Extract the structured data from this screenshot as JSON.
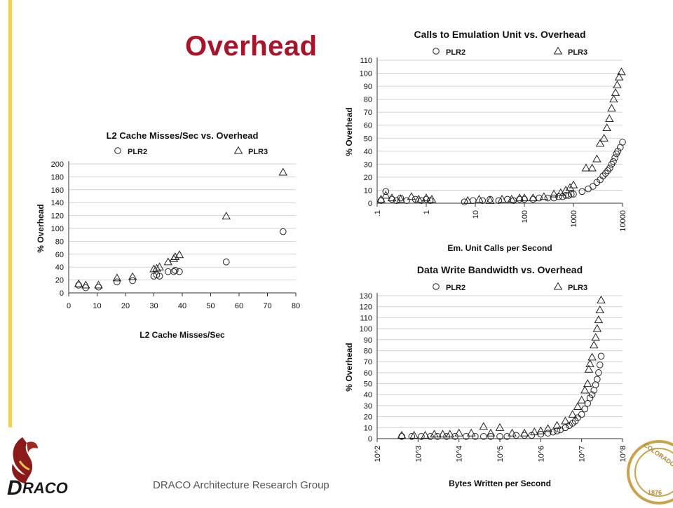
{
  "slide": {
    "title": "Overhead",
    "footer": "DRACO Architecture Research Group",
    "logo_text": "DRACO",
    "seal_text": "COLORADO",
    "colors": {
      "title": "#a8142a",
      "left_bar": "#f2cf57",
      "grid": "#d2d2d2",
      "mark": "#222222"
    }
  },
  "chart_data": [
    {
      "type": "scatter",
      "title": "L2 Cache Misses/Sec vs. Overhead",
      "xlabel": "L2 Cache Misses/Sec",
      "ylabel": "% Overhead",
      "xscale": "linear",
      "xlim": [
        0,
        80
      ],
      "ylim": [
        0,
        200
      ],
      "xticks": [
        0,
        10,
        20,
        30,
        40,
        50,
        60,
        70,
        80
      ],
      "xtick_labels": [
        "0",
        "10",
        "20",
        "30",
        "40",
        "50",
        "60",
        "70",
        "80"
      ],
      "yticks": [
        0,
        20,
        40,
        60,
        80,
        100,
        120,
        140,
        160,
        180,
        200
      ],
      "ytick_labels": [
        "0",
        "20",
        "40",
        "60",
        "80",
        "100",
        "120",
        "140",
        "160",
        "180",
        "200"
      ],
      "grid": true,
      "legend": "top",
      "series": [
        {
          "name": "PLR2",
          "marker": "circle",
          "x": [
            3.5,
            6,
            10.5,
            17,
            22.5,
            30,
            31,
            32,
            35,
            37,
            37.5,
            39,
            55.5,
            75.5
          ],
          "y": [
            12,
            8,
            9,
            17,
            19,
            26,
            28,
            26,
            33,
            33,
            35,
            33,
            48,
            95
          ]
        },
        {
          "name": "PLR3",
          "marker": "triangle",
          "x": [
            3.5,
            6,
            10.5,
            17,
            22.5,
            30,
            31,
            32,
            35,
            37,
            37.5,
            39,
            55.5,
            75.5
          ],
          "y": [
            14,
            12,
            12,
            23,
            25,
            37,
            38,
            40,
            48,
            53,
            56,
            59,
            119,
            187
          ]
        }
      ]
    },
    {
      "type": "scatter",
      "title": "Calls to Emulation Unit vs. Overhead",
      "xlabel": "Em. Unit Calls per Second",
      "ylabel": "% Overhead",
      "xscale": "log",
      "xlim": [
        0.1,
        10000
      ],
      "ylim": [
        0,
        110
      ],
      "xticks": [
        0.1,
        1,
        10,
        100,
        1000,
        10000
      ],
      "xtick_labels": [
        ".1",
        "1",
        "10",
        "100",
        "1000",
        "10000"
      ],
      "yticks": [
        0,
        10,
        20,
        30,
        40,
        50,
        60,
        70,
        80,
        90,
        100,
        110
      ],
      "ytick_labels": [
        "0",
        "10",
        "20",
        "30",
        "40",
        "50",
        "60",
        "70",
        "80",
        "90",
        "100",
        "110"
      ],
      "grid": true,
      "legend": "top",
      "series": [
        {
          "name": "PLR2",
          "marker": "circle",
          "x": [
            0.12,
            0.15,
            0.2,
            0.25,
            0.3,
            0.4,
            0.6,
            0.8,
            1,
            1.2,
            6,
            9,
            14,
            20,
            30,
            45,
            60,
            80,
            100,
            150,
            200,
            300,
            400,
            500,
            600,
            700,
            800,
            900,
            1000,
            1500,
            2000,
            2500,
            3000,
            3500,
            4000,
            4500,
            5000,
            5500,
            6000,
            6500,
            7000,
            7500,
            8000,
            9000,
            10000
          ],
          "y": [
            2,
            9,
            3,
            2,
            4,
            2,
            3,
            2,
            3,
            2,
            1,
            2,
            2,
            3,
            2,
            3,
            2,
            3,
            3,
            3,
            4,
            4,
            4,
            5,
            5,
            6,
            6,
            7,
            7,
            9,
            11,
            13,
            16,
            18,
            21,
            23,
            25,
            27,
            30,
            32,
            35,
            38,
            40,
            43,
            47
          ]
        },
        {
          "name": "PLR3",
          "marker": "triangle",
          "x": [
            0.12,
            0.15,
            0.2,
            0.3,
            0.5,
            0.7,
            1,
            1.3,
            7,
            12,
            20,
            35,
            55,
            80,
            100,
            150,
            250,
            400,
            550,
            700,
            850,
            1000,
            1800,
            2400,
            3000,
            3500,
            4200,
            4800,
            5400,
            6000,
            6600,
            7200,
            7800,
            8500,
            9500
          ],
          "y": [
            3,
            6,
            4,
            3,
            5,
            3,
            4,
            3,
            2,
            3,
            2,
            3,
            3,
            4,
            4,
            4,
            5,
            7,
            8,
            10,
            12,
            14,
            27,
            27,
            34,
            46,
            50,
            58,
            65,
            73,
            80,
            85,
            91,
            97,
            101
          ]
        }
      ]
    },
    {
      "type": "scatter",
      "title": "Data Write Bandwidth vs. Overhead",
      "xlabel": "Bytes Written per Second",
      "ylabel": "% Overhead",
      "xscale": "log",
      "xlim": [
        100,
        100000000
      ],
      "ylim": [
        0,
        130
      ],
      "xticks": [
        100,
        1000,
        10000,
        100000,
        1000000,
        10000000,
        100000000
      ],
      "xtick_labels": [
        "10^2",
        "10^3",
        "10^4",
        "10^5",
        "10^6",
        "10^7",
        "10^8"
      ],
      "yticks": [
        0,
        10,
        20,
        30,
        40,
        50,
        60,
        70,
        80,
        90,
        100,
        110,
        120,
        130
      ],
      "ytick_labels": [
        "0",
        "10",
        "20",
        "30",
        "40",
        "50",
        "60",
        "70",
        "80",
        "90",
        "100",
        "110",
        "120",
        "130"
      ],
      "grid": true,
      "legend": "top",
      "series": [
        {
          "name": "PLR2",
          "marker": "circle",
          "x": [
            400,
            700,
            1200,
            2000,
            3000,
            5000,
            8000,
            15000,
            25000,
            40000,
            60000,
            100000,
            150000,
            250000,
            400000,
            600000,
            1000000,
            1500000,
            2000000,
            2500000,
            3000000,
            4000000,
            5000000,
            6000000,
            7000000,
            8000000,
            10000000,
            12000000,
            14000000,
            16000000,
            18000000,
            20000000,
            22000000,
            24000000,
            26000000,
            28000000,
            30000000
          ],
          "y": [
            2,
            2,
            2,
            2,
            2,
            2,
            2,
            2,
            2,
            2,
            2,
            2,
            2,
            3,
            3,
            3,
            4,
            5,
            6,
            7,
            8,
            10,
            12,
            14,
            16,
            19,
            22,
            27,
            32,
            37,
            40,
            44,
            49,
            54,
            60,
            67,
            75
          ]
        },
        {
          "name": "PLR3",
          "marker": "triangle",
          "x": [
            400,
            800,
            1500,
            2500,
            4000,
            6000,
            10000,
            20000,
            40000,
            60000,
            100000,
            200000,
            400000,
            700000,
            1000000,
            1500000,
            2500000,
            4000000,
            6000000,
            8000000,
            10000000,
            12000000,
            14000000,
            15000000,
            16000000,
            18000000,
            20000000,
            22000000,
            24000000,
            26000000,
            28000000,
            30000000
          ],
          "y": [
            3,
            3,
            3,
            4,
            4,
            4,
            5,
            5,
            11,
            5,
            10,
            5,
            5,
            6,
            7,
            9,
            12,
            16,
            22,
            29,
            35,
            44,
            50,
            63,
            68,
            74,
            85,
            92,
            100,
            108,
            117,
            126
          ]
        }
      ]
    }
  ]
}
